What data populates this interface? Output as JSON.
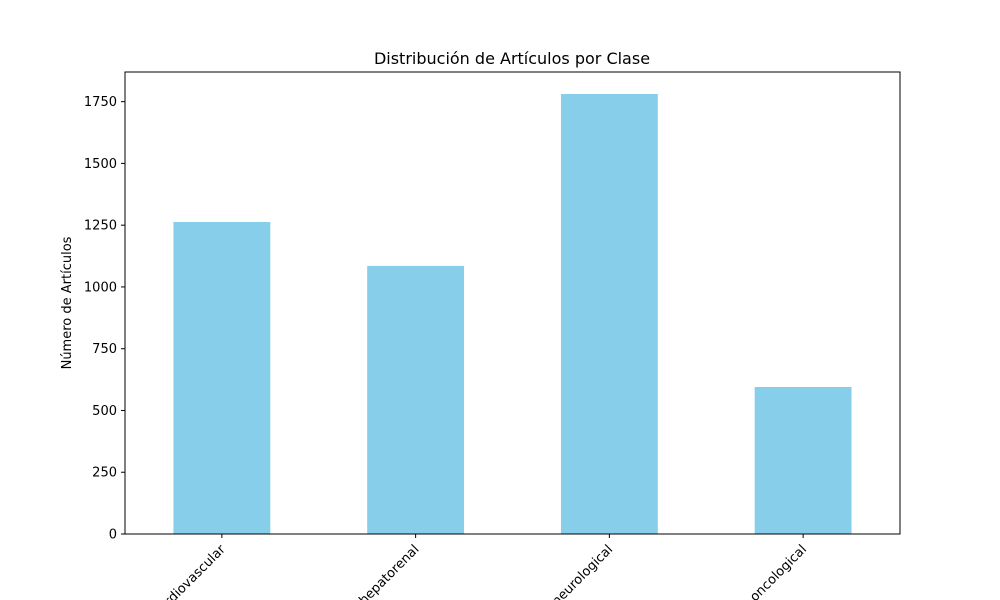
{
  "chart_data": {
    "type": "bar",
    "title": "Distribución de Artículos por Clase",
    "xlabel": "",
    "ylabel": "Número de Artículos",
    "categories": [
      "cardiovascular",
      "hepatorenal",
      "neurological",
      "oncological"
    ],
    "values": [
      1263,
      1085,
      1781,
      595
    ],
    "ylim": [
      0,
      1870
    ],
    "yticks": [
      0,
      250,
      500,
      750,
      1000,
      1250,
      1500,
      1750
    ],
    "bar_color": "#87CEEB",
    "grid": false,
    "legend": "none"
  }
}
